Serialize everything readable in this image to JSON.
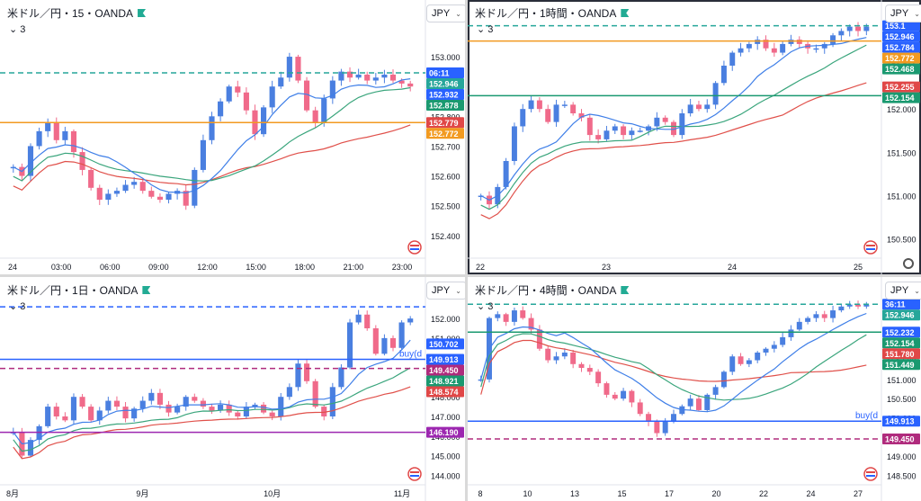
{
  "colors": {
    "up": "#4a7fe0",
    "down": "#f06a8a",
    "ma_fast": "#3f7fe8",
    "ma_mid": "#3aa57c",
    "ma_slow": "#e0504a",
    "orange": "#f29a20",
    "green": "#1a9970",
    "purple": "#9c27b0",
    "blue": "#2962ff",
    "dashed_green": "#26a69a",
    "pink": "#b02b7d",
    "red": "#e04747",
    "sketch": "#8d8d8d"
  },
  "panes": [
    {
      "title": "米ドル／円・15・OANDA",
      "indicator_count": "3",
      "currency": "JPY",
      "chart_data": {
        "type": "candlestick",
        "title": "米ドル／円・15・OANDA",
        "ylim": [
          152.33,
          153.13
        ],
        "y_ticks": [
          "153.000",
          "152.900",
          "152.800",
          "152.700",
          "152.600",
          "152.500",
          "152.400"
        ],
        "x_labels": [
          "24",
          "03:00",
          "06:00",
          "09:00",
          "12:00",
          "15:00",
          "18:00",
          "21:00",
          "23:00"
        ],
        "path": [
          152.63,
          152.6,
          152.7,
          152.75,
          152.78,
          152.72,
          152.75,
          152.68,
          152.62,
          152.56,
          152.52,
          152.54,
          152.55,
          152.57,
          152.58,
          152.55,
          152.53,
          152.52,
          152.54,
          152.55,
          152.5,
          152.62,
          152.72,
          152.8,
          152.85,
          152.9,
          152.88,
          152.82,
          152.74,
          152.83,
          152.9,
          152.93,
          153.0,
          152.92,
          152.82,
          152.78,
          152.86,
          152.92,
          152.95,
          152.93,
          152.94,
          152.92,
          152.93,
          152.94,
          152.92,
          152.91,
          152.9
        ],
        "spans": [
          [
            0,
            0.0,
            0.35
          ],
          [
            2,
            0.32,
            0.94
          ],
          [
            1,
            0.38,
            0.84
          ]
        ],
        "levels": [
          {
            "label": "06:11",
            "value": 152.946,
            "kind": "dash",
            "color": "#26a69a",
            "tag_bg": "#2962ff"
          },
          {
            "label": "152.946",
            "value": 152.946,
            "tag_bg": "#26a69a"
          },
          {
            "label": "152.932",
            "value": 152.912,
            "tag_bg": "#2962ff"
          },
          {
            "label": "152.878",
            "value": 152.878,
            "tag_bg": "#1a9970"
          },
          {
            "label": "152.779",
            "value": 152.779,
            "kind": "solid",
            "color": "#f29a20",
            "tag_bg": "#e04747"
          },
          {
            "label": "152.772",
            "value": 152.752,
            "tag_bg": "#f29a20"
          }
        ]
      }
    },
    {
      "title": "米ドル／円・1時間・OANDA",
      "indicator_count": "3",
      "currency": "JPY",
      "chart_data": {
        "type": "candlestick",
        "title": "米ドル／円・1時間・OANDA",
        "ylim": [
          150.3,
          153.05
        ],
        "y_ticks": [
          "152.500",
          "152.000",
          "151.500",
          "151.000",
          "150.500"
        ],
        "x_labels": [
          "22",
          "23",
          "24",
          "25"
        ],
        "path": [
          151.0,
          150.9,
          151.1,
          151.4,
          151.8,
          152.0,
          152.1,
          152.0,
          151.85,
          152.05,
          152.05,
          151.95,
          151.9,
          151.7,
          151.65,
          151.75,
          151.8,
          151.7,
          151.75,
          151.75,
          151.8,
          151.9,
          151.85,
          151.7,
          151.95,
          152.05,
          152.0,
          152.05,
          152.3,
          152.5,
          152.65,
          152.7,
          152.75,
          152.8,
          152.7,
          152.65,
          152.75,
          152.8,
          152.75,
          152.7,
          152.7,
          152.75,
          152.85,
          152.9,
          152.95,
          152.9,
          152.95
        ],
        "spans": [
          [
            0,
            0.0,
            0.5
          ],
          [
            2,
            0.5,
            0.82
          ],
          [
            1,
            0.7,
            0.62
          ]
        ],
        "levels": [
          {
            "label": "153.1",
            "value": 152.96,
            "kind": "dash",
            "color": "#26a69a",
            "tag_bg": "#2962ff"
          },
          {
            "label": "152.946",
            "value": 152.946,
            "tag_bg": "#2962ff"
          },
          {
            "label": "152.784",
            "value": 152.784,
            "kind": "solid",
            "color": "#f29a20",
            "tag_bg": "#2962ff"
          },
          {
            "label": "152.772",
            "value": 152.65,
            "tag_bg": "#f29a20"
          },
          {
            "label": "152.468",
            "value": 152.468,
            "tag_bg": "#1a9970"
          },
          {
            "label": "152.255",
            "value": 152.255,
            "tag_bg": "#e04747"
          },
          {
            "label": "152.154",
            "value": 152.154,
            "kind": "solid",
            "color": "#1a9970",
            "tag_bg": "#1a9970"
          }
        ]
      }
    },
    {
      "title": "米ドル／円・1日・OANDA",
      "indicator_count": "3",
      "currency": "JPY",
      "chart_data": {
        "type": "candlestick",
        "title": "米ドル／円・1日・OANDA",
        "ylim": [
          143.6,
          153.2
        ],
        "y_ticks": [
          "152.000",
          "151.000",
          "150.000",
          "149.000",
          "148.000",
          "147.000",
          "146.000",
          "145.000",
          "144.000"
        ],
        "x_labels": [
          "8月",
          "9月",
          "10月",
          "11月"
        ],
        "path": [
          146.2,
          145.0,
          145.8,
          146.5,
          147.5,
          147.0,
          146.8,
          148.0,
          147.5,
          146.8,
          147.3,
          147.8,
          147.5,
          146.9,
          147.4,
          147.8,
          148.2,
          147.6,
          147.2,
          147.5,
          148.0,
          147.8,
          147.5,
          147.3,
          147.6,
          147.2,
          147.0,
          147.5,
          147.6,
          147.2,
          147.0,
          148.0,
          148.5,
          149.7,
          148.8,
          147.5,
          147.0,
          148.5,
          149.5,
          151.8,
          152.2,
          151.5,
          150.2,
          151.0,
          150.5,
          151.8,
          152.0
        ],
        "spans": [
          [
            0,
            0.0,
            0.3
          ],
          [
            2,
            0.3,
            0.62
          ],
          [
            1,
            0.62,
            0.7
          ]
        ],
        "levels": [
          {
            "label": "",
            "value": 152.6,
            "kind": "dash",
            "color": "#2962ff"
          },
          {
            "label": "150.702",
            "value": 150.702,
            "tag_bg": "#2962ff"
          },
          {
            "label": "149.913",
            "value": 149.913,
            "kind": "solid",
            "color": "#2962ff",
            "tag_bg": "#2962ff",
            "text": "buy(d"
          },
          {
            "label": "149.450",
            "value": 149.45,
            "kind": "dash",
            "color": "#b02b7d",
            "tag_bg": "#b02b7d"
          },
          {
            "label": "148.921",
            "value": 148.921,
            "tag_bg": "#1a9970"
          },
          {
            "label": "148.574",
            "value": 148.574,
            "tag_bg": "#e04747"
          },
          {
            "label": "146.190",
            "value": 146.19,
            "kind": "solid",
            "color": "#9c27b0",
            "tag_bg": "#9c27b0"
          }
        ]
      }
    },
    {
      "title": "米ドル／円・4時間・OANDA",
      "indicator_count": "3",
      "currency": "JPY",
      "chart_data": {
        "type": "candlestick",
        "title": "米ドル／円・4時間・OANDA",
        "ylim": [
          148.3,
          153.2
        ],
        "y_ticks": [
          "152.000",
          "151.500",
          "151.000",
          "150.500",
          "150.000",
          "149.500",
          "149.000",
          "148.500"
        ],
        "x_labels": [
          "8",
          "10",
          "13",
          "15",
          "17",
          "20",
          "22",
          "24",
          "27"
        ],
        "path": [
          151.0,
          152.6,
          152.7,
          152.5,
          152.8,
          152.6,
          152.3,
          151.8,
          151.5,
          151.6,
          151.7,
          151.4,
          151.3,
          151.2,
          150.9,
          150.6,
          150.5,
          150.7,
          150.4,
          150.1,
          149.9,
          149.6,
          149.9,
          150.1,
          150.3,
          150.5,
          150.2,
          150.6,
          150.8,
          151.2,
          151.6,
          151.4,
          151.5,
          151.7,
          151.8,
          151.9,
          152.1,
          152.3,
          152.5,
          152.6,
          152.7,
          152.6,
          152.8,
          152.9,
          152.95,
          152.9,
          152.95
        ],
        "spans": [
          [
            0,
            0.1,
            0.2
          ],
          [
            2,
            0.1,
            0.78
          ],
          [
            1,
            0.35,
            0.6
          ]
        ],
        "levels": [
          {
            "label": "36:11",
            "value": 152.96,
            "kind": "dash",
            "color": "#26a69a",
            "tag_bg": "#2962ff"
          },
          {
            "label": "152.946",
            "value": 152.946,
            "tag_bg": "#26a69a"
          },
          {
            "label": "152.232",
            "value": 152.232,
            "kind": "solid",
            "color": "#1a9970",
            "tag_bg": "#2962ff"
          },
          {
            "label": "152.154",
            "value": 152.1,
            "tag_bg": "#1a9970"
          },
          {
            "label": "151.780",
            "value": 151.78,
            "tag_bg": "#e04747"
          },
          {
            "label": "151.449",
            "value": 151.449,
            "tag_bg": "#1a9970"
          },
          {
            "label": "149.913",
            "value": 149.913,
            "kind": "solid",
            "color": "#2962ff",
            "tag_bg": "#2962ff",
            "text": "buy(d"
          },
          {
            "label": "149.450",
            "value": 149.45,
            "kind": "dash",
            "color": "#b02b7d",
            "tag_bg": "#b02b7d"
          }
        ]
      }
    }
  ]
}
